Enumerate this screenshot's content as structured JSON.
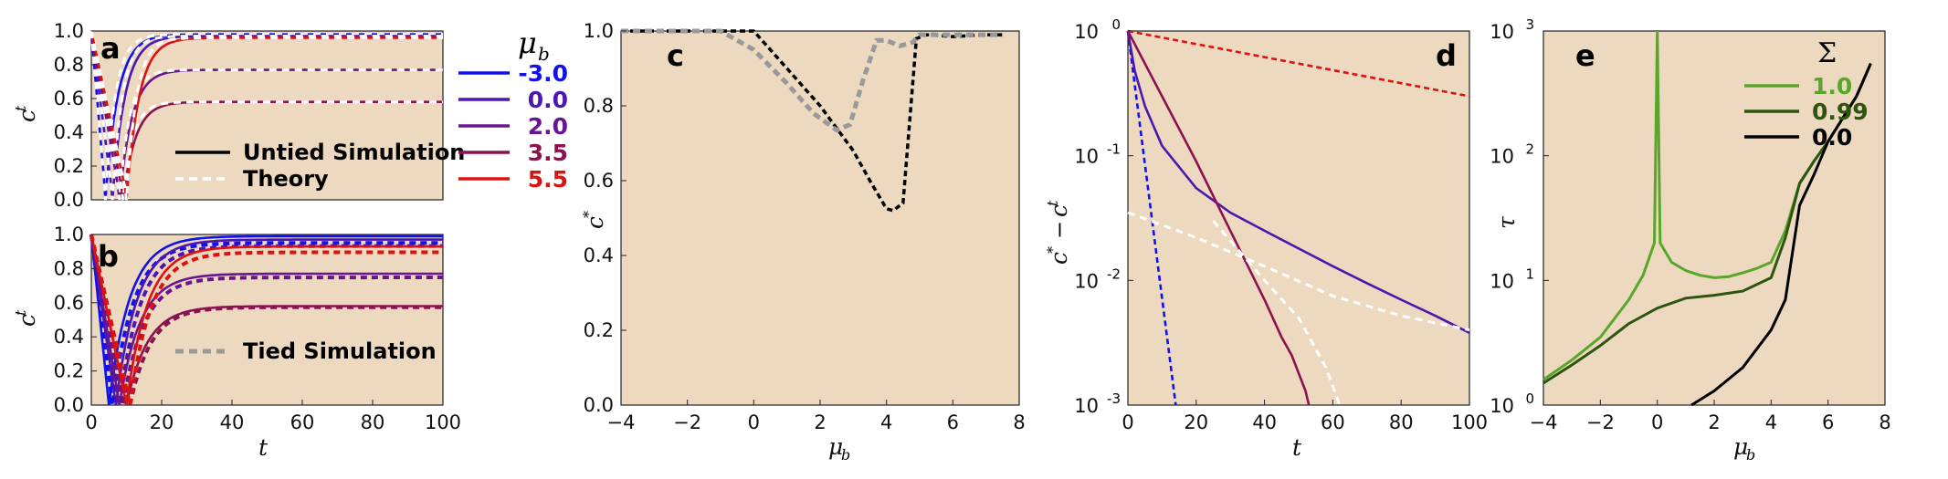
{
  "figure": {
    "background": "#ffffff",
    "axes_bg": "#ecd9bf"
  },
  "chart_data": [
    {
      "panel": "a",
      "type": "line",
      "xlabel": "t",
      "ylabel": "c^t",
      "xlim": [
        0,
        100
      ],
      "ylim": [
        0,
        1
      ],
      "yticks": [
        "0.0",
        "0.2",
        "0.4",
        "0.6",
        "0.8",
        "1.0"
      ],
      "legend": [
        "Untied Simulation",
        "Theory"
      ],
      "series": [
        {
          "name": "-3.0",
          "color": "#1111ee",
          "final": 0.98,
          "min_t": 4,
          "rate": 1.2
        },
        {
          "name": "0.0",
          "color": "#4b17b0",
          "final": 0.97,
          "min_t": 6,
          "rate": 0.8
        },
        {
          "name": "2.0",
          "color": "#6a1590",
          "final": 0.77,
          "min_t": 8,
          "rate": 0.5
        },
        {
          "name": "3.5",
          "color": "#8b124f",
          "final": 0.58,
          "min_t": 9,
          "rate": 0.25
        },
        {
          "name": "5.5",
          "color": "#dd1111",
          "final": 0.96,
          "min_t": 10,
          "rate": 0.05
        }
      ]
    },
    {
      "panel": "b",
      "type": "line",
      "xlabel": "t",
      "ylabel": "c^t",
      "xlim": [
        0,
        100
      ],
      "ylim": [
        0,
        1
      ],
      "xticks": [
        "0",
        "20",
        "40",
        "60",
        "80",
        "100"
      ],
      "yticks": [
        "0.0",
        "0.2",
        "0.4",
        "0.6",
        "0.8",
        "1.0"
      ],
      "legend": [
        "Tied Simulation"
      ],
      "series": [
        {
          "name": "-3.0",
          "color": "#1111ee",
          "final": 0.99,
          "min_t": 5
        },
        {
          "name": "0.0",
          "color": "#4b17b0",
          "final": 0.97,
          "min_t": 7
        },
        {
          "name": "2.0",
          "color": "#6a1590",
          "final": 0.77,
          "min_t": 8
        },
        {
          "name": "3.5",
          "color": "#8b124f",
          "final": 0.58,
          "min_t": 10
        },
        {
          "name": "5.5",
          "color": "#dd1111",
          "final": 0.93,
          "min_t": 10
        }
      ]
    },
    {
      "panel": "c",
      "type": "line",
      "xlabel": "μ_b",
      "ylabel": "c*",
      "xlim": [
        -4,
        8
      ],
      "ylim": [
        0,
        1
      ],
      "xticks": [
        "−4",
        "−2",
        "0",
        "2",
        "4",
        "6",
        "8"
      ],
      "yticks": [
        "0.0",
        "0.2",
        "0.4",
        "0.6",
        "0.8",
        "1.0"
      ],
      "series": [
        {
          "name": "untied",
          "color": "#000000",
          "x": [
            -4,
            -1,
            0,
            1,
            2,
            3,
            3.5,
            4,
            4.2,
            4.5,
            4.9,
            5.2,
            6,
            7,
            7.5
          ],
          "y": [
            1.0,
            1.0,
            1.0,
            0.9,
            0.8,
            0.68,
            0.6,
            0.525,
            0.52,
            0.54,
            0.98,
            0.99,
            0.985,
            0.99,
            0.99
          ]
        },
        {
          "name": "tied",
          "color": "#999999",
          "x": [
            -4,
            -1,
            0,
            1,
            1.8,
            2.5,
            2.9,
            3.3,
            3.7,
            4.0,
            4.4,
            4.8,
            5.0,
            6,
            7,
            7.5
          ],
          "y": [
            1.0,
            1.0,
            0.95,
            0.86,
            0.78,
            0.735,
            0.75,
            0.87,
            0.975,
            0.975,
            0.96,
            0.97,
            0.99,
            0.99,
            0.99,
            0.99
          ]
        }
      ]
    },
    {
      "panel": "d",
      "type": "line",
      "xlabel": "t",
      "ylabel": "c* − c^t",
      "xlim": [
        0,
        100
      ],
      "ylim": [
        0.001,
        1
      ],
      "yscale": "log",
      "xticks": [
        "0",
        "20",
        "40",
        "60",
        "80",
        "100"
      ],
      "series": [
        {
          "name": "-3.0",
          "color": "#1111ee",
          "x": [
            0,
            14
          ],
          "y": [
            1.0,
            0.001
          ]
        },
        {
          "name": "0.0",
          "color": "#4b17b0",
          "x": [
            0,
            2,
            5,
            10,
            20,
            30,
            40,
            50,
            60,
            70,
            80,
            90,
            100
          ],
          "y": [
            1.0,
            0.48,
            0.25,
            0.12,
            0.055,
            0.035,
            0.025,
            0.018,
            0.013,
            0.0095,
            0.007,
            0.0052,
            0.0038
          ]
        },
        {
          "name": "3.5",
          "color": "#8b124f",
          "x": [
            0,
            10,
            20,
            30,
            40,
            45,
            48,
            50,
            52,
            53
          ],
          "y": [
            1.0,
            0.3,
            0.09,
            0.025,
            0.007,
            0.0035,
            0.0025,
            0.0018,
            0.0013,
            0.001
          ]
        },
        {
          "name": "5.5",
          "color": "#dd1111",
          "x": [
            0,
            100
          ],
          "y": [
            1.0,
            0.3
          ]
        }
      ]
    },
    {
      "panel": "e",
      "type": "line",
      "xlabel": "μ_b",
      "ylabel": "τ",
      "xlim": [
        -4,
        8
      ],
      "ylim": [
        1,
        1000
      ],
      "yscale": "log",
      "xticks": [
        "−4",
        "−2",
        "0",
        "2",
        "4",
        "6",
        "8"
      ],
      "legend_title": "Σ",
      "series": [
        {
          "name": "1.0",
          "color": "#5aa62a",
          "x": [
            -4,
            -3,
            -2,
            -1,
            -0.5,
            -0.1,
            0,
            0.1,
            0.5,
            1,
            1.5,
            2,
            2.5,
            3,
            3.5,
            4,
            4.5,
            5,
            5.5,
            6,
            7,
            7.5
          ],
          "y": [
            1.6,
            2.3,
            3.5,
            7,
            11,
            20,
            1000,
            20,
            14,
            12,
            11,
            10.5,
            10.7,
            11.5,
            12.5,
            14,
            25,
            60,
            90,
            130,
            300,
            550
          ]
        },
        {
          "name": "0.99",
          "color": "#2e5510",
          "x": [
            -4,
            -3,
            -2,
            -1,
            0,
            1,
            2,
            3,
            4,
            4.5,
            5,
            5.5,
            6,
            7,
            7.5
          ],
          "y": [
            1.5,
            2.1,
            3.0,
            4.5,
            6.0,
            7.2,
            7.6,
            8.2,
            10.5,
            22,
            60,
            90,
            130,
            300,
            550
          ]
        },
        {
          "name": "0.0",
          "color": "#000000",
          "x": [
            1.2,
            2,
            3,
            4,
            4.5,
            5,
            5.5,
            6,
            7,
            7.5
          ],
          "y": [
            1.0,
            1.3,
            2.0,
            4.0,
            7.0,
            40,
            70,
            130,
            300,
            550
          ]
        }
      ]
    }
  ],
  "labels": {
    "panel_a": "a",
    "panel_b": "b",
    "panel_c": "c",
    "panel_d": "d",
    "panel_e": "e",
    "legend_mu_title": "μ",
    "legend_mu_sub": "b",
    "legend_mu": [
      "-3.0",
      "0.0",
      "2.0",
      "3.5",
      "5.5"
    ],
    "untied": "Untied Simulation",
    "theory": "Theory",
    "tied": "Tied Simulation",
    "sigma_title": "Σ",
    "sigma_entries": [
      "1.0",
      "0.99",
      "0.0"
    ],
    "xlabel_t": "t",
    "xlabel_mu": "μ",
    "xlabel_mu_sub": "b",
    "ylabel_ct": "c",
    "ylabel_ct_sup": "t",
    "ylabel_cstar": "c",
    "ylabel_cstar_sup": "*",
    "ylabel_d_main": "c",
    "ylabel_d_sup1": "*",
    "ylabel_d_minus": "−",
    "ylabel_d_c": "c",
    "ylabel_d_sup2": "t",
    "ylabel_tau": "τ",
    "log_d": {
      "base": "10",
      "exps": [
        "0",
        "-1",
        "-2",
        "-3"
      ]
    },
    "log_e": {
      "base": "10",
      "exps": [
        "0",
        "1",
        "2",
        "3"
      ]
    }
  }
}
